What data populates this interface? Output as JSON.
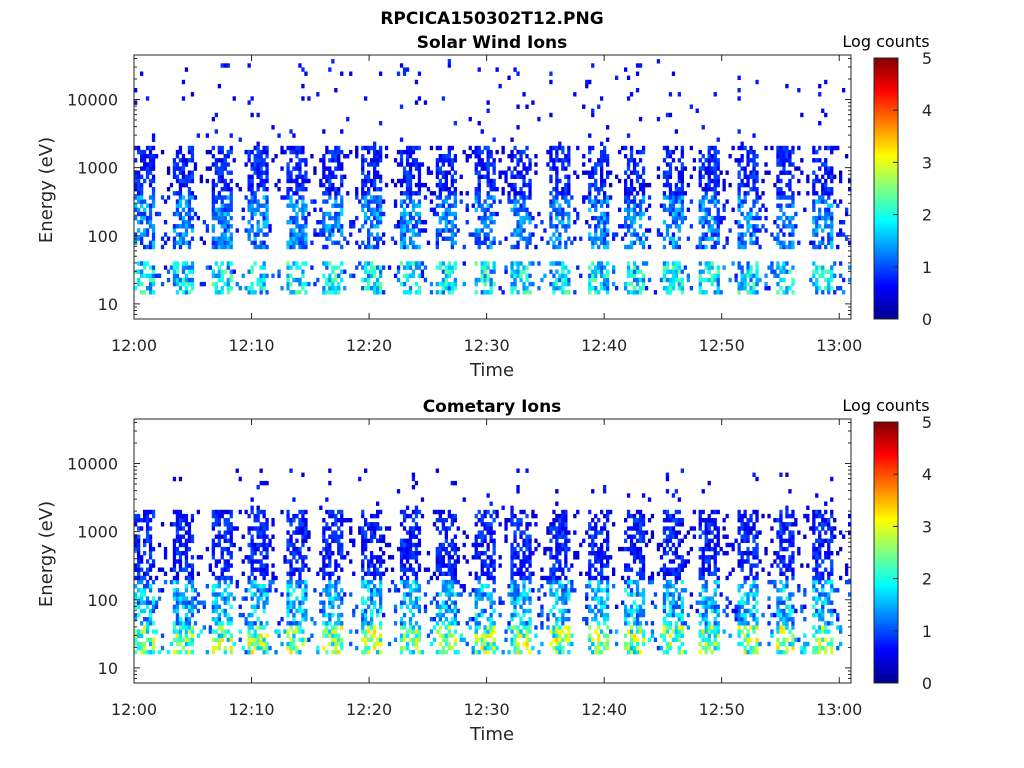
{
  "figure_title": "RPCICA150302T12.PNG",
  "chart_data": [
    {
      "type": "heatmap",
      "title": "Solar Wind Ions",
      "xlabel": "Time",
      "ylabel": "Energy (eV)",
      "x_range": [
        "12:00",
        "13:01"
      ],
      "x_ticks": [
        "12:00",
        "12:10",
        "12:20",
        "12:30",
        "12:40",
        "12:50",
        "13:00"
      ],
      "y_scale": "log",
      "y_range": [
        6,
        45000
      ],
      "y_ticks": [
        10,
        100,
        1000,
        10000
      ],
      "y_tick_labels": [
        "10",
        "100",
        "1000",
        "10000"
      ],
      "colorbar": {
        "label": "Log counts",
        "range": [
          0,
          5
        ],
        "ticks": [
          "0",
          "1",
          "2",
          "3",
          "4",
          "5"
        ],
        "colormap": "jet"
      },
      "pattern": {
        "cycle_minutes": 3.2,
        "bands": [
          {
            "energy_range": [
              13,
              40
            ],
            "peak_log_counts": 2.3
          },
          {
            "energy_range": [
              60,
              400
            ],
            "peak_log_counts": 1.6
          },
          {
            "energy_range": [
              400,
              2000
            ],
            "peak_log_counts": 1.0
          }
        ],
        "sparse_high_energy": [
          2000,
          40000
        ]
      }
    },
    {
      "type": "heatmap",
      "title": "Cometary Ions",
      "xlabel": "Time",
      "ylabel": "Energy (eV)",
      "x_range": [
        "12:00",
        "13:01"
      ],
      "x_ticks": [
        "12:00",
        "12:10",
        "12:20",
        "12:30",
        "12:40",
        "12:50",
        "13:00"
      ],
      "y_scale": "log",
      "y_range": [
        6,
        45000
      ],
      "y_ticks": [
        10,
        100,
        1000,
        10000
      ],
      "y_tick_labels": [
        "10",
        "100",
        "1000",
        "10000"
      ],
      "colorbar": {
        "label": "Log counts",
        "range": [
          0,
          5
        ],
        "ticks": [
          "0",
          "1",
          "2",
          "3",
          "4",
          "5"
        ],
        "colormap": "jet"
      },
      "pattern": {
        "cycle_minutes": 3.2,
        "bands": [
          {
            "energy_range": [
              15,
              40
            ],
            "peak_log_counts": 3.2
          },
          {
            "energy_range": [
              40,
              200
            ],
            "peak_log_counts": 2.0
          },
          {
            "energy_range": [
              200,
              2000
            ],
            "peak_log_counts": 1.0
          }
        ],
        "sparse_high_energy": [
          2000,
          8000
        ]
      }
    }
  ]
}
